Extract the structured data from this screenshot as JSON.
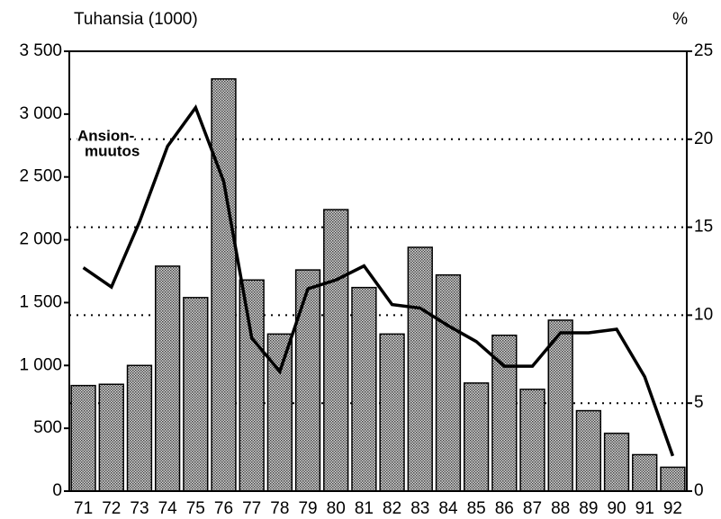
{
  "chart_data": {
    "type": "bar",
    "y_axis_label": "Tuhansia (1000)",
    "y2_axis_label": "%",
    "annotation": [
      "Ansion-",
      "muutos"
    ],
    "categories": [
      "71",
      "72",
      "73",
      "74",
      "75",
      "76",
      "77",
      "78",
      "79",
      "80",
      "81",
      "82",
      "83",
      "84",
      "85",
      "86",
      "87",
      "88",
      "89",
      "90",
      "91",
      "92"
    ],
    "series": [
      {
        "type": "bar",
        "color": "#8c8c8c",
        "values": [
          840,
          850,
          1000,
          1790,
          1540,
          3280,
          1680,
          1250,
          1760,
          2240,
          1620,
          1250,
          1940,
          1720,
          860,
          1240,
          810,
          1360,
          640,
          460,
          290,
          190
        ]
      },
      {
        "type": "line",
        "axis": "y2",
        "color": "#000000",
        "values": [
          12.7,
          11.6,
          15.3,
          19.6,
          21.8,
          17.6,
          8.7,
          6.8,
          11.5,
          12.0,
          12.8,
          10.6,
          10.4,
          9.4,
          8.5,
          7.1,
          7.1,
          9.0,
          9.0,
          9.2,
          6.5,
          2.0
        ]
      }
    ],
    "ylim": [
      0,
      3500
    ],
    "yticks": [
      {
        "value": 0,
        "label": "0"
      },
      {
        "value": 500,
        "label": "500"
      },
      {
        "value": 1000,
        "label": "1 000"
      },
      {
        "value": 1500,
        "label": "1 500"
      },
      {
        "value": 2000,
        "label": "2 000"
      },
      {
        "value": 2500,
        "label": "2 500"
      },
      {
        "value": 3000,
        "label": "3 000"
      },
      {
        "value": 3500,
        "label": "3 500"
      }
    ],
    "y2lim": [
      0,
      25
    ],
    "y2ticks": [
      0,
      5,
      10,
      15,
      20,
      25
    ],
    "grid": true
  }
}
